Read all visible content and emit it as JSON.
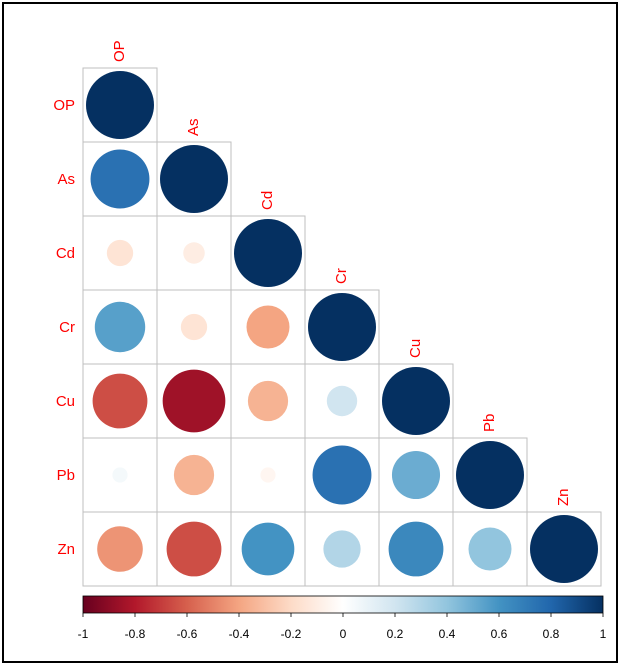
{
  "chart_data": {
    "type": "heatmap",
    "subtype": "correlation-matrix-circles",
    "layout": "lower-triangle",
    "variables": [
      "OP",
      "As",
      "Cd",
      "Cr",
      "Cu",
      "Pb",
      "Zn"
    ],
    "matrix": [
      [
        1.0,
        null,
        null,
        null,
        null,
        null,
        null
      ],
      [
        0.75,
        1.0,
        null,
        null,
        null,
        null,
        null
      ],
      [
        -0.15,
        -0.1,
        1.0,
        null,
        null,
        null,
        null
      ],
      [
        0.55,
        -0.15,
        -0.4,
        1.0,
        null,
        null,
        null
      ],
      [
        -0.65,
        -0.85,
        -0.35,
        0.2,
        1.0,
        null,
        null
      ],
      [
        0.05,
        -0.35,
        -0.05,
        0.75,
        0.5,
        1.0,
        null
      ],
      [
        -0.45,
        -0.65,
        0.6,
        0.3,
        0.65,
        0.4,
        1.0
      ]
    ],
    "colorbar": {
      "min": -1,
      "max": 1,
      "ticks": [
        -1,
        -0.8,
        -0.6,
        -0.4,
        -0.2,
        0,
        0.2,
        0.4,
        0.6,
        0.8,
        1
      ],
      "tick_labels": [
        "-1",
        "-0.8",
        "-0.6",
        "-0.4",
        "-0.2",
        "0",
        "0.2",
        "0.4",
        "0.6",
        "0.8",
        "1"
      ],
      "position": "bottom"
    },
    "colors": {
      "negative": "#67001f",
      "neutral": "#ffffff",
      "positive": "#053061",
      "label": "#ff0000",
      "grid": "#bfbfbf"
    }
  }
}
